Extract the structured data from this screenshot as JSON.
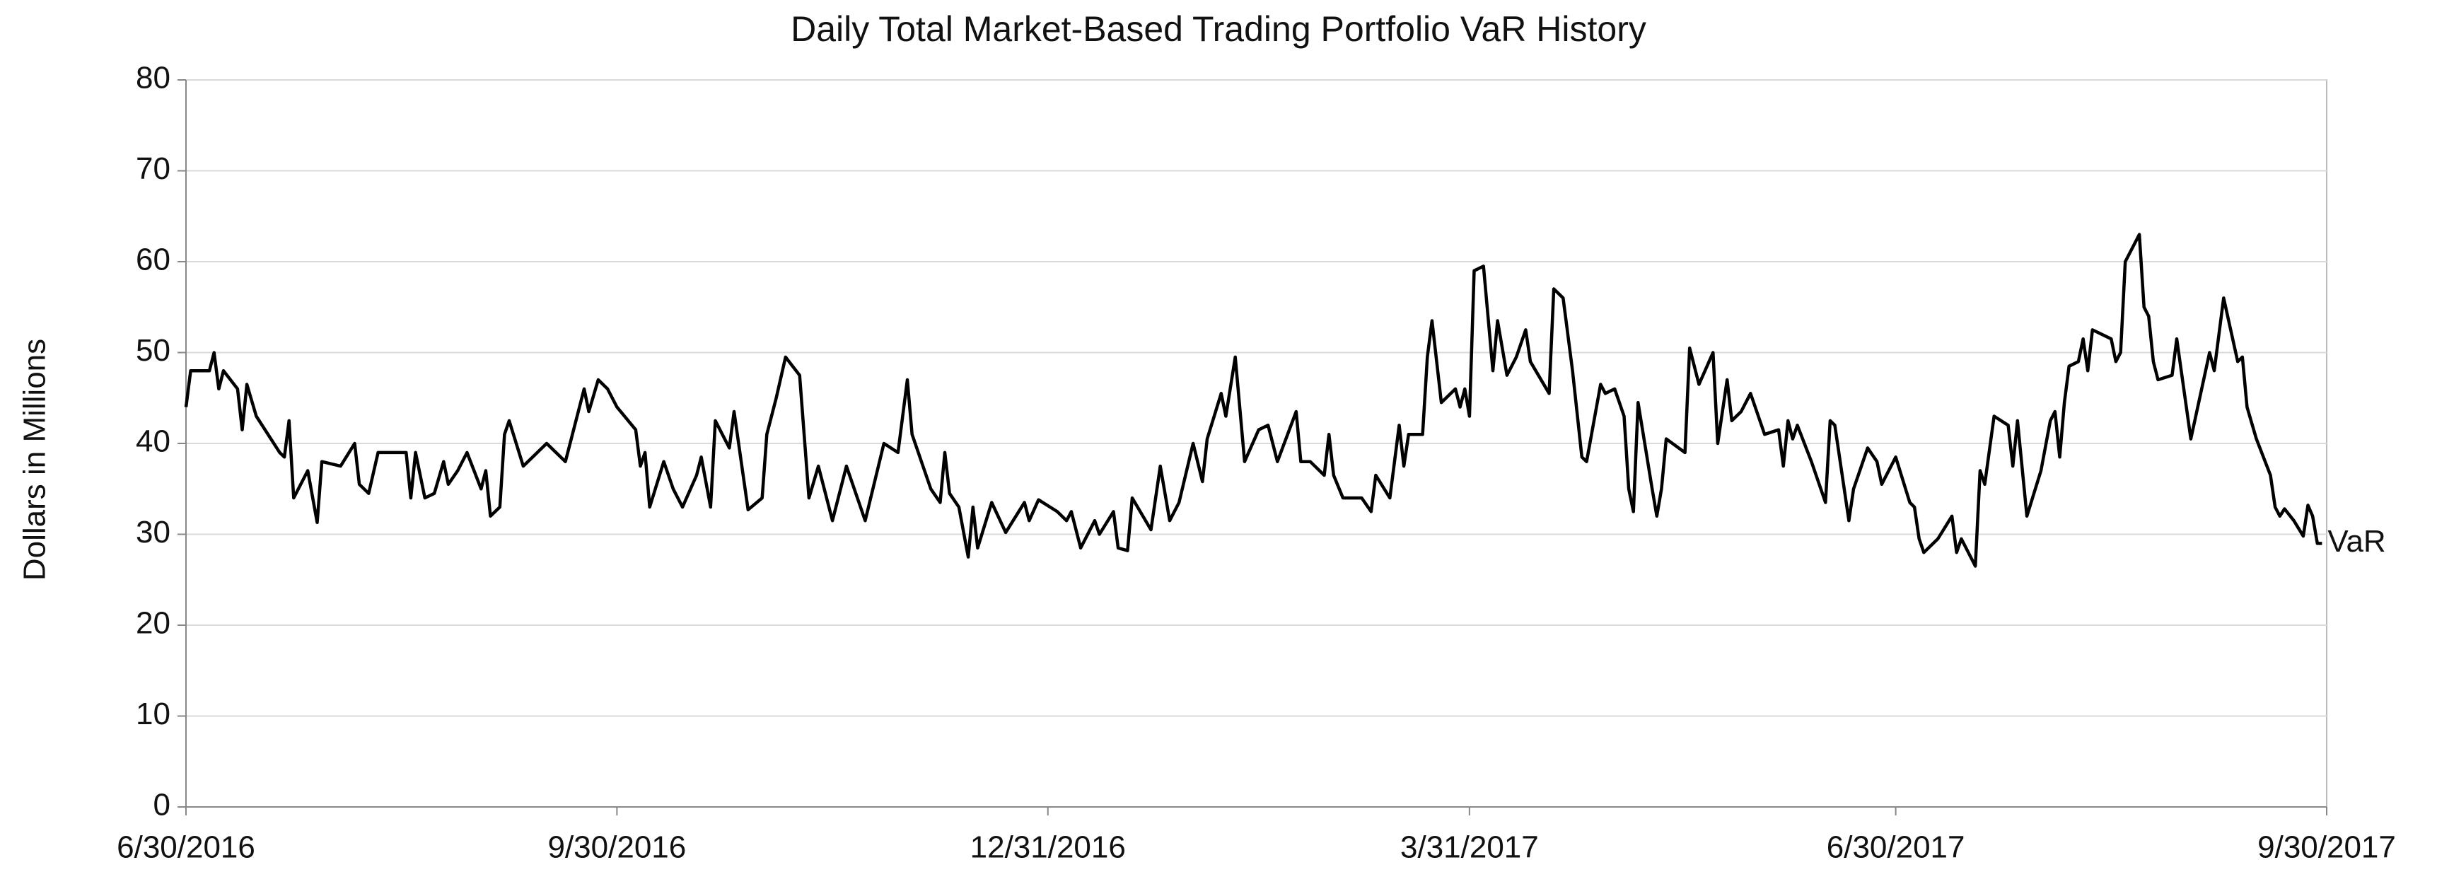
{
  "chart_data": {
    "type": "line",
    "title": "Daily Total Market-Based Trading Portfolio VaR History",
    "y_label": "Dollars in Millions",
    "xlim": [
      "6/30/2016",
      "9/30/2017"
    ],
    "xticks": [
      "6/30/2016",
      "9/30/2016",
      "12/31/2016",
      "3/31/2017",
      "6/30/2017",
      "9/30/2017"
    ],
    "ylim": [
      0,
      80
    ],
    "yticks": [
      0,
      10,
      20,
      30,
      40,
      50,
      60,
      70,
      80
    ],
    "grid": true,
    "x": [
      "6/30/2016",
      "7/1/2016",
      "7/5/2016",
      "7/6/2016",
      "7/7/2016",
      "7/8/2016",
      "7/11/2016",
      "7/12/2016",
      "7/13/2016",
      "7/15/2016",
      "7/20/2016",
      "7/21/2016",
      "7/22/2016",
      "7/23/2016",
      "7/26/2016",
      "7/28/2016",
      "7/29/2016",
      "8/2/2016",
      "8/5/2016",
      "8/6/2016",
      "8/8/2016",
      "8/10/2016",
      "8/13/2016",
      "8/16/2016",
      "8/17/2016",
      "8/18/2016",
      "8/20/2016",
      "8/22/2016",
      "8/24/2016",
      "8/25/2016",
      "8/27/2016",
      "8/29/2016",
      "9/1/2016",
      "9/2/2016",
      "9/3/2016",
      "9/5/2016",
      "9/6/2016",
      "9/7/2016",
      "9/10/2016",
      "9/15/2016",
      "9/19/2016",
      "9/23/2016",
      "9/24/2016",
      "9/26/2016",
      "9/28/2016",
      "9/30/2016",
      "10/4/2016",
      "10/5/2016",
      "10/6/2016",
      "10/7/2016",
      "10/10/2016",
      "10/12/2016",
      "10/14/2016",
      "10/17/2016",
      "10/18/2016",
      "10/20/2016",
      "10/21/2016",
      "10/24/2016",
      "10/25/2016",
      "10/28/2016",
      "10/31/2016",
      "11/1/2016",
      "11/3/2016",
      "11/5/2016",
      "11/8/2016",
      "11/10/2016",
      "11/12/2016",
      "11/15/2016",
      "11/18/2016",
      "11/22/2016",
      "11/26/2016",
      "11/29/2016",
      "12/1/2016",
      "12/2/2016",
      "12/6/2016",
      "12/8/2016",
      "12/9/2016",
      "12/10/2016",
      "12/12/2016",
      "12/14/2016",
      "12/15/2016",
      "12/16/2016",
      "12/19/2016",
      "12/22/2016",
      "12/26/2016",
      "12/27/2016",
      "12/29/2016",
      "1/2/2017",
      "1/4/2017",
      "1/5/2017",
      "1/7/2017",
      "1/10/2017",
      "1/11/2017",
      "1/14/2017",
      "1/15/2017",
      "1/17/2017",
      "1/18/2017",
      "1/22/2017",
      "1/24/2017",
      "1/26/2017",
      "1/28/2017",
      "1/31/2017",
      "2/2/2017",
      "2/3/2017",
      "2/6/2017",
      "2/7/2017",
      "2/9/2017",
      "2/11/2017",
      "2/14/2017",
      "2/16/2017",
      "2/18/2017",
      "2/22/2017",
      "2/23/2017",
      "2/25/2017",
      "2/28/2017",
      "3/1/2017",
      "3/2/2017",
      "3/4/2017",
      "3/8/2017",
      "3/10/2017",
      "3/11/2017",
      "3/14/2017",
      "3/16/2017",
      "3/17/2017",
      "3/18/2017",
      "3/21/2017",
      "3/22/2017",
      "3/23/2017",
      "3/25/2017",
      "3/28/2017",
      "3/29/2017",
      "3/30/2017",
      "3/31/2017",
      "4/1/2017",
      "4/3/2017",
      "4/5/2017",
      "4/6/2017",
      "4/8/2017",
      "4/10/2017",
      "4/12/2017",
      "4/13/2017",
      "4/17/2017",
      "4/18/2017",
      "4/20/2017",
      "4/22/2017",
      "4/24/2017",
      "4/25/2017",
      "4/28/2017",
      "4/29/2017",
      "5/1/2017",
      "5/3/2017",
      "5/4/2017",
      "5/5/2017",
      "5/6/2017",
      "5/9/2017",
      "5/10/2017",
      "5/11/2017",
      "5/12/2017",
      "5/16/2017",
      "5/17/2017",
      "5/19/2017",
      "5/22/2017",
      "5/23/2017",
      "5/25/2017",
      "5/26/2017",
      "5/28/2017",
      "5/30/2017",
      "6/2/2017",
      "6/5/2017",
      "6/6/2017",
      "6/7/2017",
      "6/8/2017",
      "6/9/2017",
      "6/12/2017",
      "6/15/2017",
      "6/16/2017",
      "6/17/2017",
      "6/20/2017",
      "6/21/2017",
      "6/24/2017",
      "6/26/2017",
      "6/27/2017",
      "6/30/2017",
      "7/3/2017",
      "7/4/2017",
      "7/5/2017",
      "7/6/2017",
      "7/9/2017",
      "7/12/2017",
      "7/13/2017",
      "7/14/2017",
      "7/17/2017",
      "7/18/2017",
      "7/19/2017",
      "7/21/2017",
      "7/24/2017",
      "7/25/2017",
      "7/26/2017",
      "7/28/2017",
      "7/31/2017",
      "8/2/2017",
      "8/3/2017",
      "8/4/2017",
      "8/5/2017",
      "8/6/2017",
      "8/8/2017",
      "8/9/2017",
      "8/10/2017",
      "8/11/2017",
      "8/15/2017",
      "8/16/2017",
      "8/17/2017",
      "8/18/2017",
      "8/21/2017",
      "8/22/2017",
      "8/23/2017",
      "8/24/2017",
      "8/25/2017",
      "8/28/2017",
      "8/29/2017",
      "9/1/2017",
      "9/5/2017",
      "9/6/2017",
      "9/8/2017",
      "9/11/2017",
      "9/12/2017",
      "9/13/2017",
      "9/15/2017",
      "9/18/2017",
      "9/19/2017",
      "9/20/2017",
      "9/21/2017",
      "9/23/2017",
      "9/25/2017",
      "9/26/2017",
      "9/27/2017",
      "9/28/2017",
      "9/29/2017"
    ],
    "series": [
      {
        "name": "VaR",
        "color": "#000000",
        "values": [
          44,
          48,
          48,
          50,
          46,
          48,
          46,
          41.5,
          46.5,
          43,
          39,
          38.5,
          42.5,
          34,
          37,
          31.3,
          38,
          37.5,
          40,
          35.5,
          34.5,
          39,
          39,
          39,
          34,
          39,
          34,
          34.5,
          38,
          35.5,
          37,
          39,
          35,
          37,
          32,
          33,
          41,
          42.5,
          37.5,
          40,
          38,
          46,
          43.5,
          47,
          46,
          44,
          41.5,
          37.5,
          39,
          33,
          38,
          35,
          33,
          36.5,
          38.5,
          33,
          42.5,
          39.5,
          43.5,
          32.7,
          34,
          41,
          45,
          49.5,
          47.5,
          34,
          37.5,
          31.5,
          37.5,
          31.5,
          40,
          39,
          47,
          41,
          35,
          33.5,
          39,
          34.5,
          33,
          27.5,
          33,
          28.5,
          33.5,
          30.2,
          33.5,
          31.5,
          33.8,
          32.5,
          31.5,
          32.5,
          28.5,
          31.5,
          30,
          32.5,
          28.5,
          28.2,
          34,
          30.5,
          37.5,
          31.5,
          33.5,
          40,
          35.8,
          40.5,
          45.5,
          43,
          49.5,
          38,
          41.5,
          42,
          38,
          43.5,
          38,
          38,
          36.5,
          41,
          36.5,
          34,
          34,
          32.5,
          36.5,
          34,
          42,
          37.5,
          41,
          41,
          49.5,
          53.5,
          44.5,
          46,
          44,
          46,
          43,
          59,
          59.5,
          48,
          53.5,
          47.5,
          49.5,
          52.5,
          49,
          45.5,
          57,
          56,
          48,
          38.5,
          38,
          46.5,
          45.5,
          46,
          43,
          35,
          32.5,
          44.5,
          35,
          32,
          35,
          40.5,
          39,
          50.5,
          46.5,
          50,
          40,
          47,
          42.5,
          43.5,
          45.5,
          41,
          41.5,
          37.5,
          42.5,
          40.5,
          42,
          38,
          33.5,
          42.5,
          42,
          31.5,
          35,
          39.5,
          38,
          35.5,
          38.5,
          33.5,
          33,
          29.5,
          28,
          29.5,
          32,
          28,
          29.5,
          26.5,
          37,
          35.5,
          43,
          42,
          37.5,
          42.5,
          32,
          37,
          42.5,
          43.5,
          38.5,
          44.5,
          48.5,
          49,
          51.5,
          48,
          52.5,
          51.5,
          49,
          50,
          60,
          63,
          55,
          54,
          49,
          47,
          47.5,
          51.5,
          40.5,
          50,
          48,
          56,
          49,
          49.5,
          44,
          40.5,
          36.5,
          33,
          32,
          32.8,
          31.5,
          29.8,
          33.2,
          32,
          29,
          29
        ]
      }
    ]
  }
}
